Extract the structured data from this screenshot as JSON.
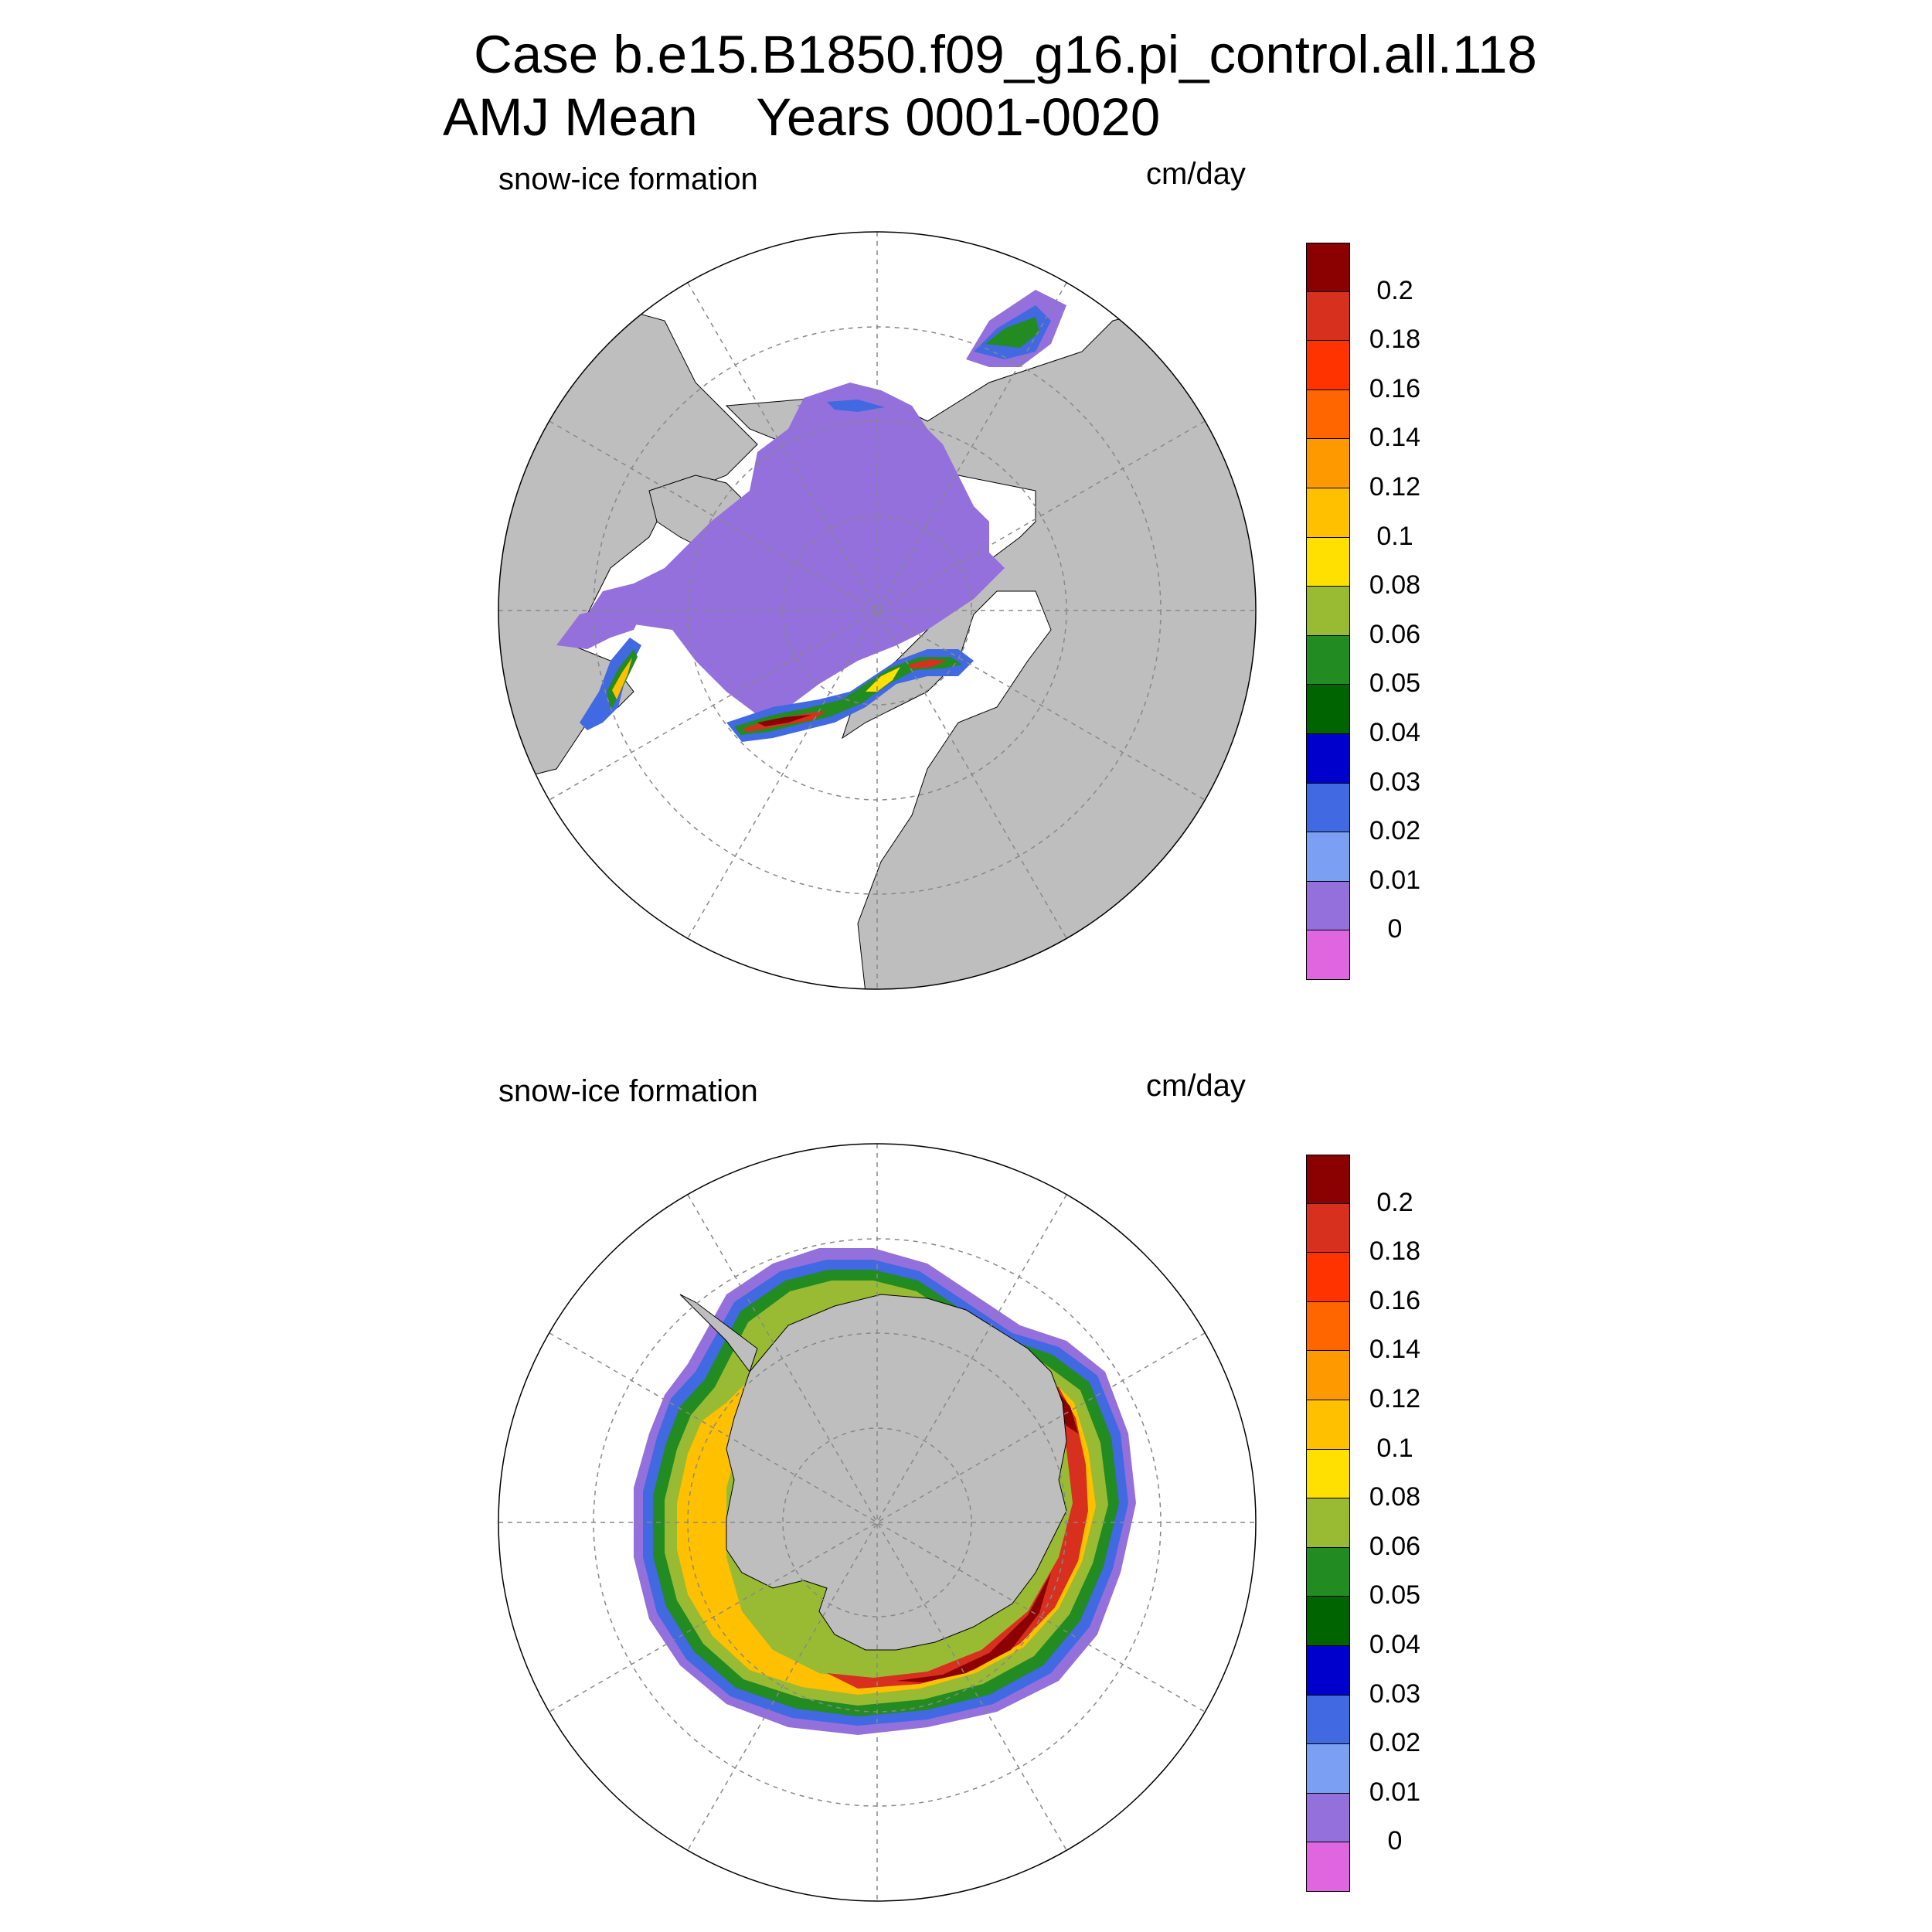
{
  "title": {
    "line1": "Case b.e15.B1850.f09_g16.pi_control.all.118",
    "line2": "AMJ Mean    Years 0001-0020"
  },
  "panels": [
    {
      "title": "snow-ice formation",
      "units": "cm/day",
      "hemisphere": "north"
    },
    {
      "title": "snow-ice formation",
      "units": "cm/day",
      "hemisphere": "south"
    }
  ],
  "colorbar": {
    "levels": [
      "0.2",
      "0.18",
      "0.16",
      "0.14",
      "0.12",
      "0.1",
      "0.08",
      "0.06",
      "0.05",
      "0.04",
      "0.03",
      "0.02",
      "0.01",
      "0"
    ],
    "colors": [
      "#8b0000",
      "#d7301f",
      "#ff3300",
      "#ff6600",
      "#ff9900",
      "#ffc000",
      "#ffe000",
      "#99bb33",
      "#228b22",
      "#006400",
      "#0000cd",
      "#4169e1",
      "#7b9ff2",
      "#9370db",
      "#e066e0"
    ]
  },
  "colors": {
    "land": "#bebebe",
    "background": "#ffffff",
    "grid": "#888888"
  }
}
